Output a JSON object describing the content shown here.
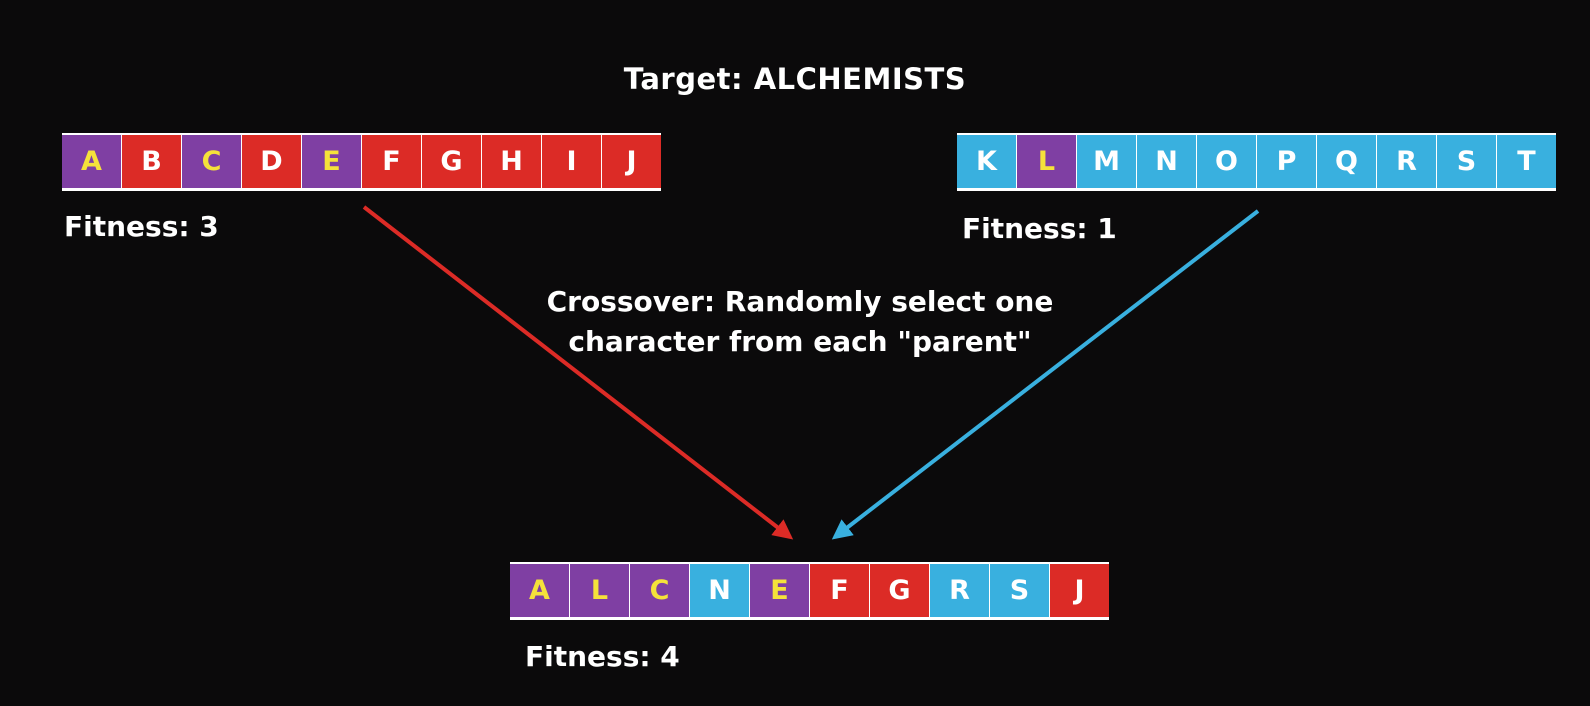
{
  "target_label": "Target: ALCHEMISTS",
  "colors": {
    "purple": "#7f3fa3",
    "red": "#dc2b26",
    "blue": "#39b0df",
    "match_text": "#f5e23a",
    "plain_text": "#ffffff",
    "background": "#0b0a0b"
  },
  "parent1": {
    "cells": [
      {
        "letter": "A",
        "color": "purple"
      },
      {
        "letter": "B",
        "color": "red"
      },
      {
        "letter": "C",
        "color": "purple"
      },
      {
        "letter": "D",
        "color": "red"
      },
      {
        "letter": "E",
        "color": "purple"
      },
      {
        "letter": "F",
        "color": "red"
      },
      {
        "letter": "G",
        "color": "red"
      },
      {
        "letter": "H",
        "color": "red"
      },
      {
        "letter": "I",
        "color": "red"
      },
      {
        "letter": "J",
        "color": "red"
      }
    ],
    "fitness_label": "Fitness: 3"
  },
  "parent2": {
    "cells": [
      {
        "letter": "K",
        "color": "blue"
      },
      {
        "letter": "L",
        "color": "purple"
      },
      {
        "letter": "M",
        "color": "blue"
      },
      {
        "letter": "N",
        "color": "blue"
      },
      {
        "letter": "O",
        "color": "blue"
      },
      {
        "letter": "P",
        "color": "blue"
      },
      {
        "letter": "Q",
        "color": "blue"
      },
      {
        "letter": "R",
        "color": "blue"
      },
      {
        "letter": "S",
        "color": "blue"
      },
      {
        "letter": "T",
        "color": "blue"
      }
    ],
    "fitness_label": "Fitness: 1"
  },
  "child": {
    "cells": [
      {
        "letter": "A",
        "color": "purple"
      },
      {
        "letter": "L",
        "color": "purple"
      },
      {
        "letter": "C",
        "color": "purple"
      },
      {
        "letter": "N",
        "color": "blue"
      },
      {
        "letter": "E",
        "color": "purple"
      },
      {
        "letter": "F",
        "color": "red"
      },
      {
        "letter": "G",
        "color": "red"
      },
      {
        "letter": "R",
        "color": "blue"
      },
      {
        "letter": "S",
        "color": "blue"
      },
      {
        "letter": "J",
        "color": "red"
      }
    ],
    "fitness_label": "Fitness: 4"
  },
  "caption": {
    "line1": "Crossover: Randomly select one",
    "line2": "character from each \"parent\""
  }
}
